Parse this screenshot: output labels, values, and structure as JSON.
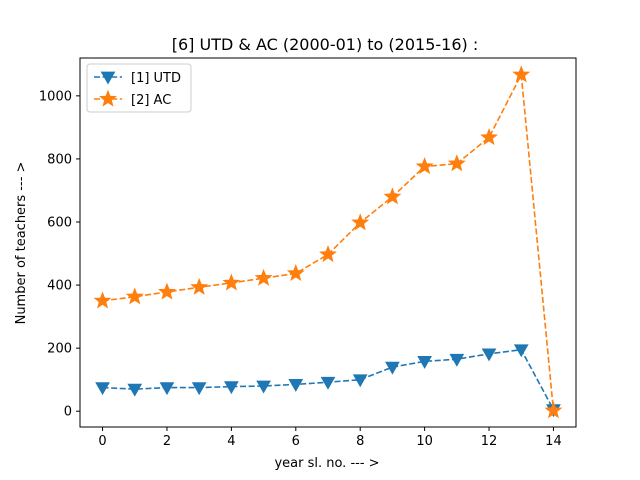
{
  "chart_data": {
    "type": "line",
    "title": "[6] UTD & AC (2000-01) to (2015-16) :",
    "xlabel": "year sl. no. --- >",
    "ylabel": "Number of teachers --- >",
    "xlim": [
      -0.7,
      14.7
    ],
    "ylim": [
      -50,
      1120
    ],
    "x_ticks": [
      0,
      2,
      4,
      6,
      8,
      10,
      12,
      14
    ],
    "y_ticks": [
      0,
      200,
      400,
      600,
      800,
      1000
    ],
    "x": [
      0,
      1,
      2,
      3,
      4,
      5,
      6,
      7,
      8,
      9,
      10,
      11,
      12,
      13,
      14
    ],
    "series": [
      {
        "name": "[1] UTD",
        "color": "#1f77b4",
        "marker": "triangle-down",
        "values": [
          75,
          70,
          75,
          75,
          78,
          80,
          85,
          92,
          100,
          140,
          158,
          165,
          182,
          195,
          5
        ]
      },
      {
        "name": "[2] AC",
        "color": "#ff7f0e",
        "marker": "star",
        "values": [
          350,
          363,
          378,
          393,
          407,
          422,
          437,
          497,
          598,
          680,
          776,
          785,
          868,
          1067,
          2
        ]
      }
    ],
    "legend_position": "top-left",
    "grid": false
  }
}
